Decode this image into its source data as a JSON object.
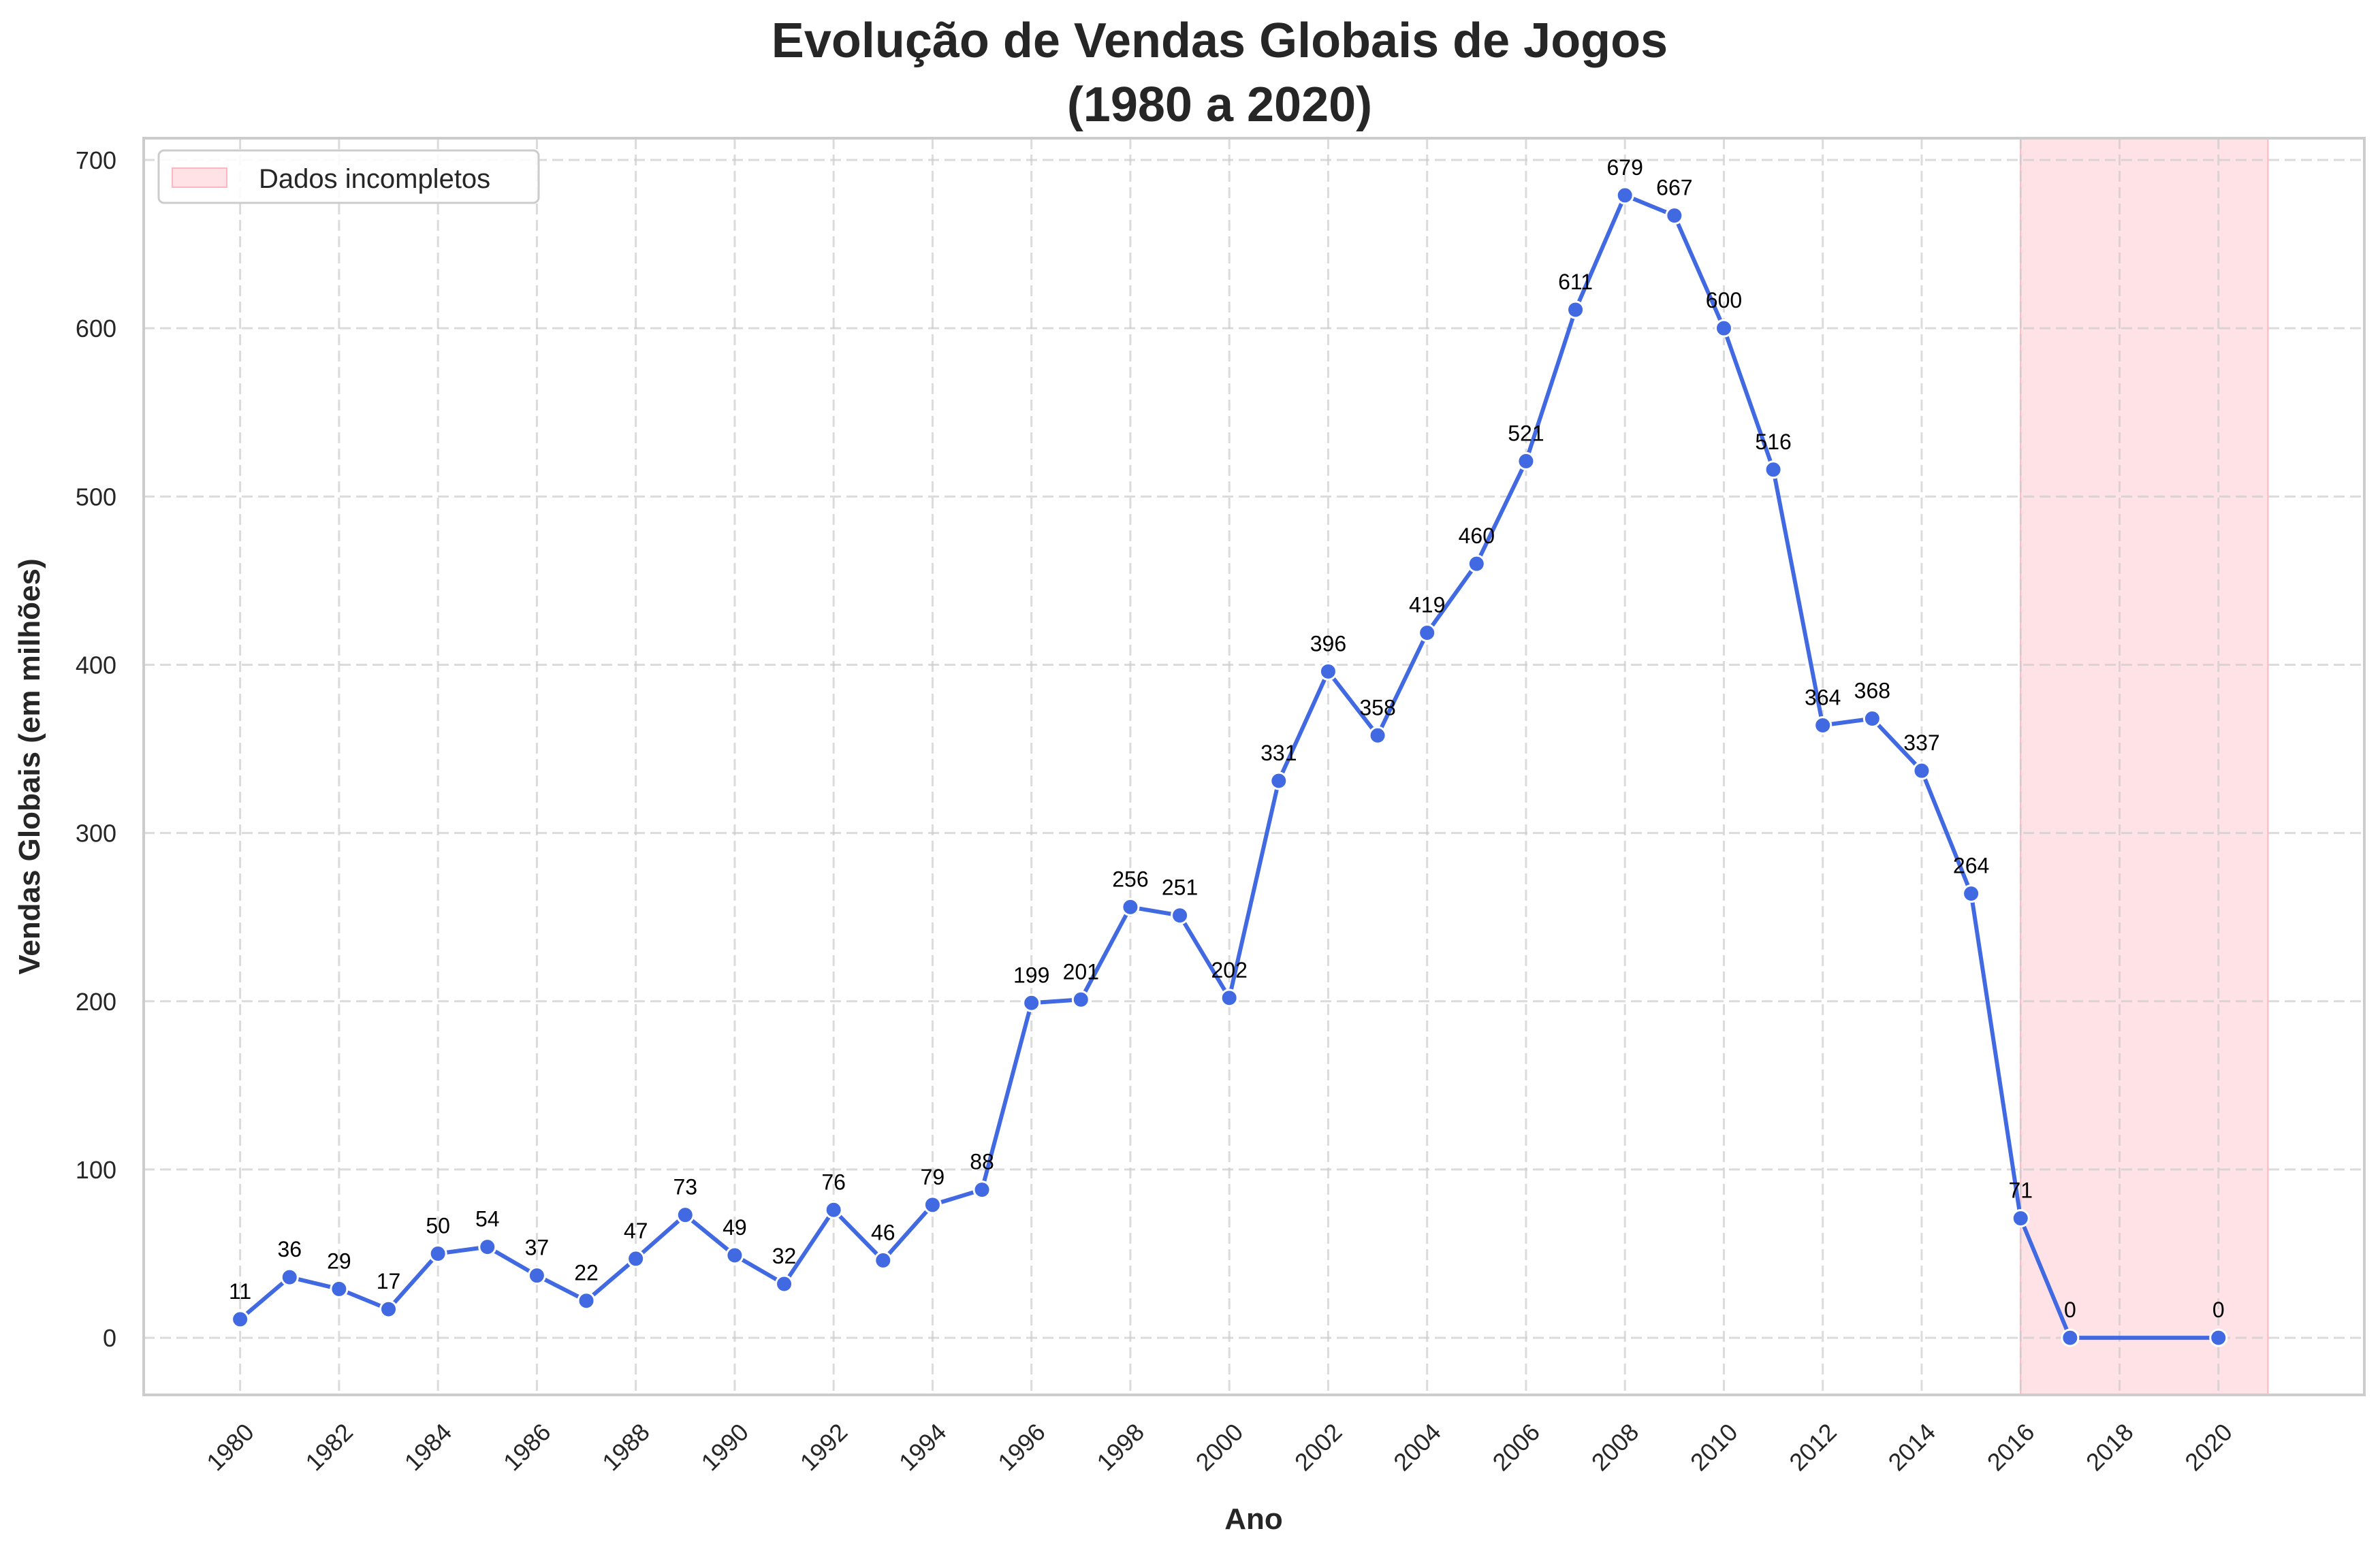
{
  "chart_data": {
    "type": "line",
    "title_line1": "Evolução de Vendas Globais de Jogos",
    "title_line2": "(1980 a 2020)",
    "xlabel": "Ano",
    "ylabel": "Vendas Globais (em milhões)",
    "x": [
      1980,
      1981,
      1982,
      1983,
      1984,
      1985,
      1986,
      1987,
      1988,
      1989,
      1990,
      1991,
      1992,
      1993,
      1994,
      1995,
      1996,
      1997,
      1998,
      1999,
      2000,
      2001,
      2002,
      2003,
      2004,
      2005,
      2006,
      2007,
      2008,
      2009,
      2010,
      2011,
      2012,
      2013,
      2014,
      2015,
      2016,
      2017,
      2020
    ],
    "series": [
      {
        "values": [
          11,
          36,
          29,
          17,
          50,
          54,
          37,
          22,
          47,
          73,
          49,
          32,
          76,
          46,
          79,
          88,
          199,
          201,
          256,
          251,
          202,
          331,
          396,
          358,
          419,
          460,
          521,
          611,
          679,
          667,
          600,
          516,
          364,
          368,
          337,
          264,
          71,
          0,
          0
        ],
        "color": "#4169e1"
      }
    ],
    "data_labels": [
      "11",
      "36",
      "29",
      "17",
      "50",
      "54",
      "37",
      "22",
      "47",
      "73",
      "49",
      "32",
      "76",
      "46",
      "79",
      "88",
      "199",
      "201",
      "256",
      "251",
      "202",
      "331",
      "396",
      "358",
      "419",
      "460",
      "521",
      "611",
      "679",
      "667",
      "600",
      "516",
      "364",
      "368",
      "337",
      "264",
      "71",
      "0",
      "0"
    ],
    "xticks": [
      "1980",
      "1982",
      "1984",
      "1986",
      "1988",
      "1990",
      "1992",
      "1994",
      "1996",
      "1998",
      "2000",
      "2002",
      "2004",
      "2006",
      "2008",
      "2010",
      "2012",
      "2014",
      "2016",
      "2018",
      "2020"
    ],
    "yticks": [
      "0",
      "100",
      "200",
      "300",
      "400",
      "500",
      "600",
      "700"
    ],
    "xlim": [
      1978.05,
      2022.95
    ],
    "ylim": [
      -33.95,
      712.95
    ],
    "shaded_region": {
      "from": 2016,
      "to": 2021,
      "label": "Dados incompletos",
      "color": "#ffb6c1"
    },
    "legend": {
      "position": "top-left",
      "entries": [
        "Dados incompletos"
      ]
    },
    "grid": true
  }
}
